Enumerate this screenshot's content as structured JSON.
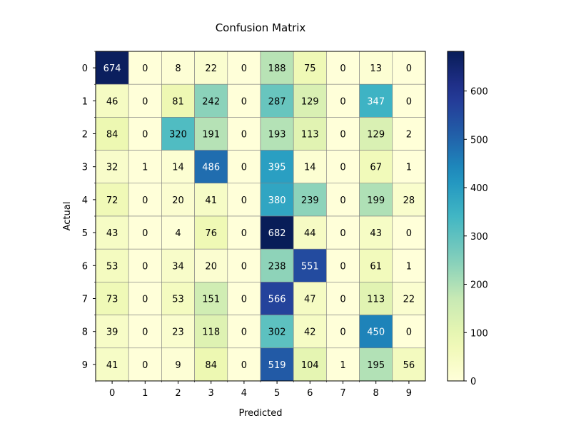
{
  "chart_data": {
    "type": "heatmap",
    "title": "Confusion Matrix",
    "xlabel": "Predicted",
    "ylabel": "Actual",
    "x_categories": [
      "0",
      "1",
      "2",
      "3",
      "4",
      "5",
      "6",
      "7",
      "8",
      "9"
    ],
    "y_categories": [
      "0",
      "1",
      "2",
      "3",
      "4",
      "5",
      "6",
      "7",
      "8",
      "9"
    ],
    "matrix": [
      [
        674,
        0,
        8,
        22,
        0,
        188,
        75,
        0,
        13,
        0
      ],
      [
        46,
        0,
        81,
        242,
        0,
        287,
        129,
        0,
        347,
        0
      ],
      [
        84,
        0,
        320,
        191,
        0,
        193,
        113,
        0,
        129,
        2
      ],
      [
        32,
        1,
        14,
        486,
        0,
        395,
        14,
        0,
        67,
        1
      ],
      [
        72,
        0,
        20,
        41,
        0,
        380,
        239,
        0,
        199,
        28
      ],
      [
        43,
        0,
        4,
        76,
        0,
        682,
        44,
        0,
        43,
        0
      ],
      [
        53,
        0,
        34,
        20,
        0,
        238,
        551,
        0,
        61,
        1
      ],
      [
        73,
        0,
        53,
        151,
        0,
        566,
        47,
        0,
        113,
        22
      ],
      [
        39,
        0,
        23,
        118,
        0,
        302,
        42,
        0,
        450,
        0
      ],
      [
        41,
        0,
        9,
        84,
        0,
        519,
        104,
        1,
        195,
        56
      ]
    ],
    "colorbar": {
      "colormap": "YlGnBu",
      "vmin": 0,
      "vmax": 682,
      "ticks": [
        0,
        100,
        200,
        300,
        400,
        500,
        600
      ]
    },
    "grid": true
  }
}
